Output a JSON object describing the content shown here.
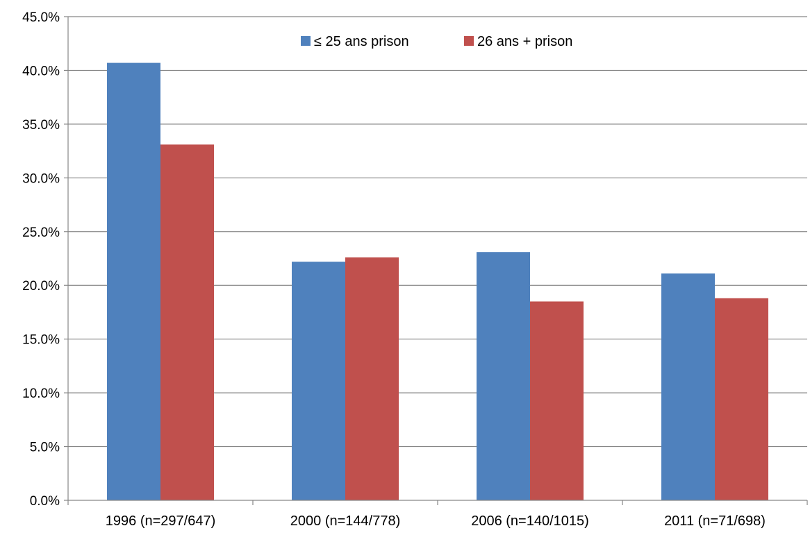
{
  "chart_data": {
    "type": "bar",
    "categories": [
      "1996 (n=297/647)",
      "2000 (n=144/778)",
      "2006 (n=140/1015)",
      "2011 (n=71/698)"
    ],
    "series": [
      {
        "name": "≤ 25 ans prison",
        "color": "#4F81BD",
        "values": [
          40.7,
          22.2,
          23.1,
          21.1
        ]
      },
      {
        "name": "26 ans + prison",
        "color": "#C0504D",
        "values": [
          33.1,
          22.6,
          18.5,
          18.8
        ]
      }
    ],
    "ylim": [
      0,
      45
    ],
    "yticks": [
      "0.0%",
      "5.0%",
      "10.0%",
      "15.0%",
      "20.0%",
      "25.0%",
      "30.0%",
      "35.0%",
      "40.0%",
      "45.0%"
    ],
    "grid": true,
    "legend_position": "top-center",
    "title": "",
    "xlabel": "",
    "ylabel": ""
  }
}
